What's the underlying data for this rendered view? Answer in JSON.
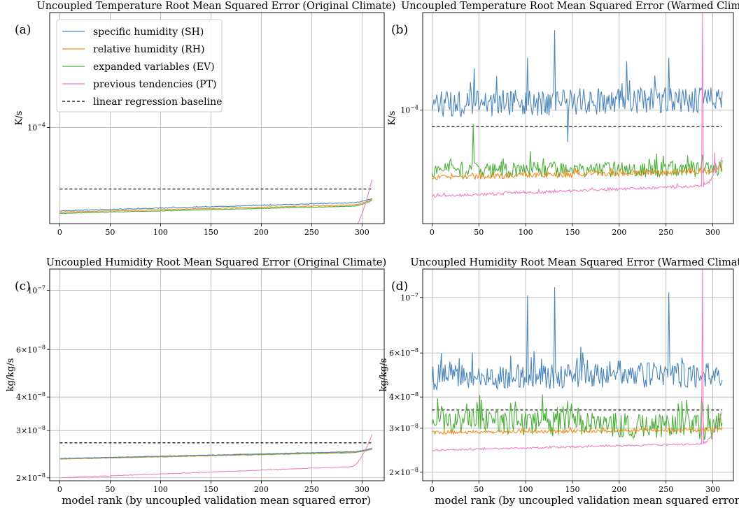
{
  "figure": {
    "xlabel": "model rank (by uncoupled validation mean squared error)"
  },
  "legend": [
    {
      "label": "specific humidity (SH)",
      "color": "#4a86be",
      "dash": false
    },
    {
      "label": "relative humidity (RH)",
      "color": "#f28c1b",
      "dash": false
    },
    {
      "label": "expanded variables (EV)",
      "color": "#4caf3a",
      "dash": false
    },
    {
      "label": "previous tendencies (PT)",
      "color": "#ee82c4",
      "dash": false
    },
    {
      "label": "linear regression baseline",
      "color": "#000000",
      "dash": true
    }
  ],
  "chart_data": [
    {
      "type": "line",
      "panel": "(a)",
      "title": "Uncoupled Temperature Root Mean Squared Error (Original Climate)",
      "ylabel": "K/s",
      "yscale": "log",
      "ylim": [
        4.5e-05,
        0.00026
      ],
      "xlim": [
        -10,
        322
      ],
      "xticks": [
        0,
        50,
        100,
        150,
        200,
        250,
        300
      ],
      "yticks": [
        {
          "value": 0.0001,
          "label": "10^-4"
        }
      ],
      "grid": true,
      "series": [
        {
          "name": "SH",
          "color": "#4a86be",
          "trend": {
            "start": 5e-05,
            "end": 5.35e-05,
            "curl_end": 5.55e-05
          },
          "noise": 0.003,
          "spikes": []
        },
        {
          "name": "RH",
          "color": "#f28c1b",
          "trend": {
            "start": 4.95e-05,
            "end": 5.25e-05,
            "curl_end": 5.5e-05
          },
          "noise": 0.002,
          "spikes": []
        },
        {
          "name": "EV",
          "color": "#4caf3a",
          "trend": {
            "start": 4.9e-05,
            "end": 5.2e-05,
            "curl_end": 5.45e-05
          },
          "noise": 0.002,
          "spikes": []
        },
        {
          "name": "PT",
          "color": "#ee82c4",
          "trend": {
            "start": 3.75e-05,
            "end": 4.25e-05,
            "curl_end": 6.5e-05
          },
          "noise": 0.003,
          "spikes": []
        }
      ],
      "baseline": 6e-05
    },
    {
      "type": "line",
      "panel": "(b)",
      "title": "Uncoupled Temperature Root Mean Squared Error (Warmed Climate)",
      "ylabel": "K/s",
      "yscale": "log",
      "ylim": [
        3.6e-05,
        0.00024
      ],
      "xlim": [
        -10,
        322
      ],
      "xticks": [
        0,
        50,
        100,
        150,
        200,
        250,
        300
      ],
      "yticks": [
        {
          "value": 0.0001,
          "label": "10^-4"
        }
      ],
      "grid": true,
      "series": [
        {
          "name": "SH",
          "color": "#4a86be",
          "trend": {
            "start": 0.000105,
            "end": 0.00011,
            "curl_end": 0.000108
          },
          "noise": 0.12,
          "spikes": [
            [
              131,
              0.000205
            ],
            [
              102,
              0.00016
            ],
            [
              145,
              7.5e-05
            ],
            [
              208,
              0.000155
            ],
            [
              253,
              0.00016
            ],
            [
              45,
              0.000145
            ]
          ]
        },
        {
          "name": "RH",
          "color": "#f28c1b",
          "trend": {
            "start": 5.45e-05,
            "end": 5.75e-05,
            "curl_end": 5.9e-05
          },
          "noise": 0.025,
          "spikes": []
        },
        {
          "name": "EV",
          "color": "#4caf3a",
          "trend": {
            "start": 5.85e-05,
            "end": 5.85e-05,
            "curl_end": 6e-05
          },
          "noise": 0.07,
          "spikes": [
            [
              44,
              8.8e-05
            ],
            [
              105,
              6.9e-05
            ]
          ]
        },
        {
          "name": "PT",
          "color": "#ee82c4",
          "trend": {
            "start": 4.6e-05,
            "end": 5.05e-05,
            "curl_end": 6.5e-05
          },
          "noise": 0.012,
          "spikes": [
            [
              289,
              0.00024
            ],
            [
              291,
              5.2e-05
            ],
            [
              302,
              6.8e-05
            ]
          ]
        }
      ],
      "baseline": 8.6e-05
    },
    {
      "type": "line",
      "panel": "(c)",
      "title": "Uncoupled Humidity Root Mean Squared Error (Original Climate)",
      "ylabel": "kg/kg/s",
      "yscale": "log",
      "ylim": [
        1.95e-08,
        1.2e-07
      ],
      "xlim": [
        -10,
        322
      ],
      "xticks": [
        0,
        50,
        100,
        150,
        200,
        250,
        300
      ],
      "yticks": [
        {
          "value": 1e-07,
          "label": "10^-7"
        },
        {
          "value": 6e-08,
          "label": "6×10^-8"
        },
        {
          "value": 4e-08,
          "label": "4×10^-8"
        },
        {
          "value": 3e-08,
          "label": "3×10^-8"
        },
        {
          "value": 2e-08,
          "label": "2×10^-8"
        }
      ],
      "grid": true,
      "series": [
        {
          "name": "SH",
          "color": "#4a86be",
          "trend": {
            "start": 2.36e-08,
            "end": 2.5e-08,
            "curl_end": 2.58e-08
          },
          "noise": 0.002,
          "spikes": []
        },
        {
          "name": "RH",
          "color": "#f28c1b",
          "trend": {
            "start": 2.35e-08,
            "end": 2.49e-08,
            "curl_end": 2.57e-08
          },
          "noise": 0.002,
          "spikes": []
        },
        {
          "name": "EV",
          "color": "#4caf3a",
          "trend": {
            "start": 2.35e-08,
            "end": 2.48e-08,
            "curl_end": 2.56e-08
          },
          "noise": 0.002,
          "spikes": []
        },
        {
          "name": "PT",
          "color": "#ee82c4",
          "trend": {
            "start": 2e-08,
            "end": 2.2e-08,
            "curl_end": 2.9e-08
          },
          "noise": 0.002,
          "spikes": []
        }
      ],
      "baseline": 2.7e-08
    },
    {
      "type": "line",
      "panel": "(d)",
      "title": "Uncoupled Humidity Root Mean Squared Error (Warmed Climate)",
      "ylabel": "kg/kg/s",
      "yscale": "log",
      "ylim": [
        1.85e-08,
        1.3e-07
      ],
      "xlim": [
        -10,
        322
      ],
      "xticks": [
        0,
        50,
        100,
        150,
        200,
        250,
        300
      ],
      "yticks": [
        {
          "value": 1e-07,
          "label": "10^-7"
        },
        {
          "value": 6e-08,
          "label": "6×10^-8"
        },
        {
          "value": 4e-08,
          "label": "4×10^-8"
        },
        {
          "value": 3e-08,
          "label": "3×10^-8"
        },
        {
          "value": 2e-08,
          "label": "2×10^-8"
        }
      ],
      "grid": true,
      "series": [
        {
          "name": "SH",
          "color": "#4a86be",
          "trend": {
            "start": 4.8e-08,
            "end": 4.9e-08,
            "curl_end": 4.6e-08
          },
          "noise": 0.12,
          "spikes": [
            [
              102,
              1.02e-07
            ],
            [
              131,
              1.1e-07
            ],
            [
              253,
              1.05e-07
            ],
            [
              10,
              6e-08
            ]
          ]
        },
        {
          "name": "RH",
          "color": "#f28c1b",
          "trend": {
            "start": 2.88e-08,
            "end": 2.95e-08,
            "curl_end": 3e-08
          },
          "noise": 0.015,
          "spikes": []
        },
        {
          "name": "EV",
          "color": "#4caf3a",
          "trend": {
            "start": 3.25e-08,
            "end": 3e-08,
            "curl_end": 3e-08
          },
          "noise": 0.12,
          "spikes": []
        },
        {
          "name": "PT",
          "color": "#ee82c4",
          "trend": {
            "start": 2.45e-08,
            "end": 2.6e-08,
            "curl_end": 3.5e-08
          },
          "noise": 0.008,
          "spikes": [
            [
              289,
              1.3e-07
            ],
            [
              291,
              2.65e-08
            ]
          ]
        }
      ],
      "baseline": 3.55e-08
    }
  ]
}
